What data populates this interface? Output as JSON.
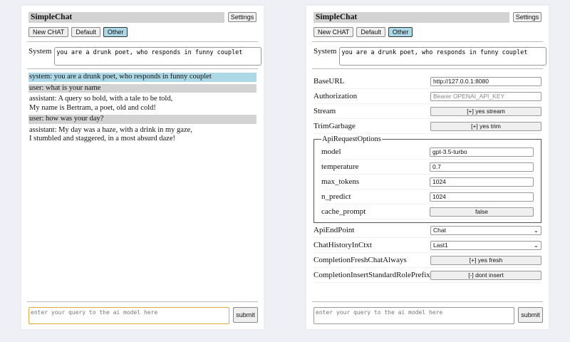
{
  "app": {
    "title": "SimpleChat",
    "settings_label": "Settings",
    "buttons": [
      "New CHAT",
      "Default",
      "Other"
    ],
    "system_label": "System",
    "system_prompt": "you are a drunk poet, who responds in funny couplet",
    "input_placeholder": "enter your query to the ai model here",
    "submit_label": "submit"
  },
  "chat": [
    {
      "role": "system",
      "lines": [
        "system: you are a drunk poet, who responds in funny couplet"
      ]
    },
    {
      "role": "user",
      "lines": [
        "user: what is your name"
      ]
    },
    {
      "role": "assistant",
      "lines": [
        "assistant: A query so bold, with a tale to be told,",
        "My name is Bertram, a poet, old and cold!"
      ]
    },
    {
      "role": "user",
      "lines": [
        "user: how was your day?"
      ]
    },
    {
      "role": "assistant",
      "lines": [
        "assistant: My day was a haze, with a drink in my gaze,",
        "I stumbled and staggered, in a most absurd daze!"
      ]
    }
  ],
  "settings": {
    "base_url": {
      "label": "BaseURL",
      "value": "http://127.0.0.1:8080"
    },
    "authorization": {
      "label": "Authorization",
      "placeholder": "Bearer OPENAI_API_KEY"
    },
    "stream": {
      "label": "Stream",
      "value": "[+] yes stream"
    },
    "trim": {
      "label": "TrimGarbage",
      "value": "[+] yes trim"
    },
    "api_options": {
      "legend": "ApiRequestOptions",
      "model": {
        "label": "model",
        "value": "gpt-3.5-turbo"
      },
      "temperature": {
        "label": "temperature",
        "value": "0.7"
      },
      "max_tokens": {
        "label": "max_tokens",
        "value": "1024"
      },
      "n_predict": {
        "label": "n_predict",
        "value": "1024"
      },
      "cache_prompt": {
        "label": "cache_prompt",
        "value": "false"
      }
    },
    "endpoint": {
      "label": "ApiEndPoint",
      "value": "Chat"
    },
    "history": {
      "label": "ChatHistoryInCtxt",
      "value": "Last1"
    },
    "fresh": {
      "label": "CompletionFreshChatAlways",
      "value": "[+] yes fresh"
    },
    "prefix": {
      "label": "CompletionInsertStandardRolePrefix",
      "value": "[-] dont insert"
    }
  },
  "colors": {
    "selected": "#add8e6",
    "user_bg": "#d3d3d3",
    "focus": "#e0a83a"
  }
}
